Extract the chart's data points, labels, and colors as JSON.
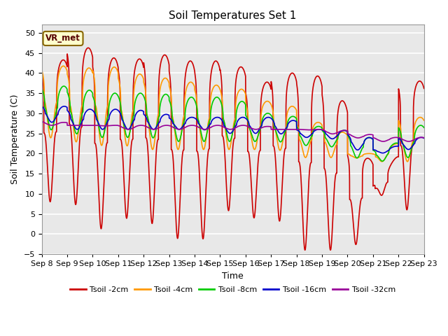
{
  "title": "Soil Temperatures Set 1",
  "xlabel": "Time",
  "ylabel": "Soil Temperature (C)",
  "ylim": [
    -5,
    52
  ],
  "yticks": [
    -5,
    0,
    5,
    10,
    15,
    20,
    25,
    30,
    35,
    40,
    45,
    50
  ],
  "annotation_text": "VR_met",
  "line_colors": {
    "2cm": "#cc0000",
    "4cm": "#ff9900",
    "8cm": "#00cc00",
    "16cm": "#0000cc",
    "32cm": "#990099"
  },
  "legend_labels": [
    "Tsoil -2cm",
    "Tsoil -4cm",
    "Tsoil -8cm",
    "Tsoil -16cm",
    "Tsoil -32cm"
  ],
  "bg_color": "#e8e8e8",
  "fig_bg_color": "#ffffff",
  "num_days": 15,
  "start_day": 8,
  "title_fontsize": 11,
  "axis_fontsize": 9,
  "tick_fontsize": 8,
  "lw": 1.2
}
